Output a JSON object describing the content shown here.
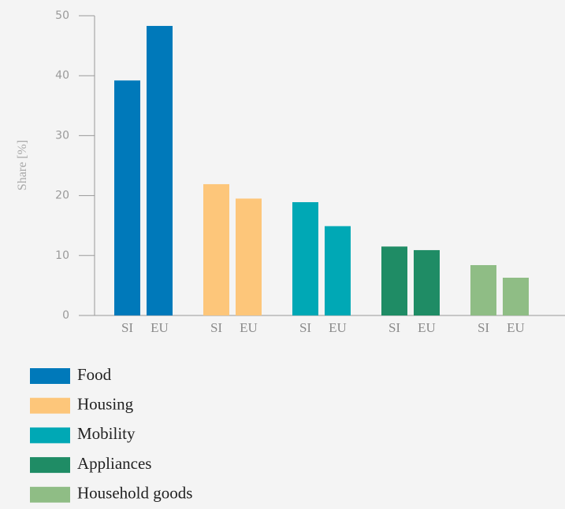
{
  "chart_data": {
    "type": "bar",
    "y_label": "Share [%]",
    "categories": [
      "SI",
      "EU"
    ],
    "series": [
      {
        "name": "Food",
        "color": "#0079ba",
        "values": [
          39.2,
          48.3
        ]
      },
      {
        "name": "Housing",
        "color": "#fdc67a",
        "values": [
          21.9,
          19.5
        ]
      },
      {
        "name": "Mobility",
        "color": "#00a8b5",
        "values": [
          18.9,
          14.9
        ]
      },
      {
        "name": "Appliances",
        "color": "#1f8c65",
        "values": [
          11.5,
          10.9
        ]
      },
      {
        "name": "Household goods",
        "color": "#8fbd85",
        "values": [
          8.4,
          6.3
        ]
      }
    ],
    "ylim": [
      0,
      50
    ],
    "yticks": [
      0,
      10,
      20,
      30,
      40,
      50
    ]
  }
}
